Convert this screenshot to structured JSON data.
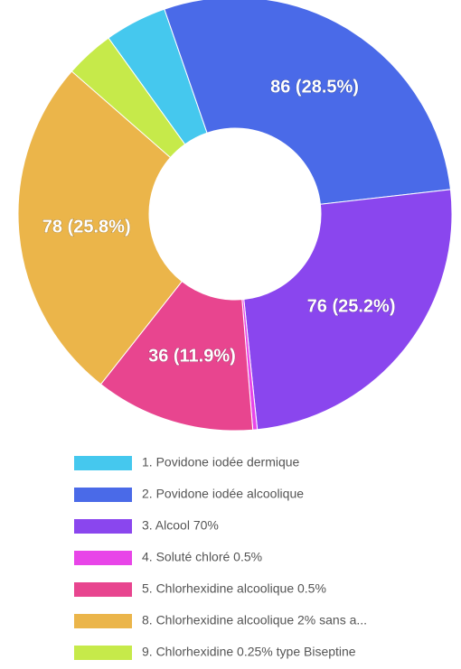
{
  "chart_data": {
    "type": "doughnut",
    "categories": [
      "1. Povidone iodée dermique",
      "2. Povidone iodée alcoolique",
      "3. Alcool 70%",
      "4. Soluté chloré 0.5%",
      "5. Chlorhexidine alcoolique 0.5%",
      "8. Chlorhexidine alcoolique 2% sans a...",
      "9. Chlorhexidine 0.25% type Biseptine"
    ],
    "values": [
      14,
      86,
      76,
      1,
      36,
      78,
      11
    ],
    "value_labels": [
      null,
      "86 (28.5%)",
      "76 (25.2%)",
      null,
      "36 (11.9%)",
      "78 (25.8%)",
      null
    ],
    "colors": [
      "#45c8ee",
      "#4a6ae8",
      "#8a46ee",
      "#e845e8",
      "#e8458f",
      "#ebb54a",
      "#c6ea4a"
    ]
  }
}
